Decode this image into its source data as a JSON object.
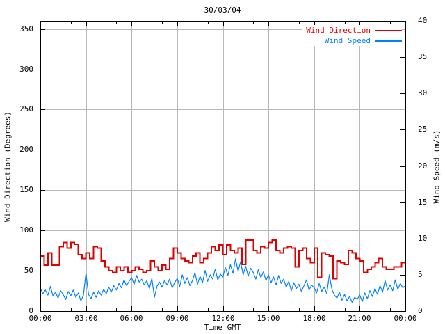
{
  "chart_data": {
    "type": "line",
    "title": "30/03/04",
    "xlabel": "Time GMT",
    "grid_color": "#b9b9b9",
    "background_color": "#ffffff",
    "axis_color": "#000000",
    "x_axis": {
      "min_hours": 0,
      "max_hours": 24,
      "major_tick_hours": [
        0,
        3,
        6,
        9,
        12,
        15,
        18,
        21,
        24
      ],
      "major_tick_labels": [
        "00:00",
        "03:00",
        "06:00",
        "09:00",
        "12:00",
        "15:00",
        "18:00",
        "21:00",
        "00:00"
      ],
      "minor_tick_interval_hours": 1,
      "grid": true
    },
    "y_left": {
      "label": "Wind Direction (Degrees)",
      "min": 0,
      "max": 360,
      "ticks": [
        0,
        50,
        100,
        150,
        200,
        250,
        300,
        350
      ],
      "grid": true
    },
    "y_right": {
      "label": "Wind Speed (m/s)",
      "min": 0,
      "max": 40,
      "ticks": [
        0,
        5,
        10,
        15,
        20,
        25,
        30,
        35,
        40
      ]
    },
    "legend": {
      "position": "top-right-inside",
      "entries": [
        {
          "label": "Wind Direction",
          "color": "#e10000"
        },
        {
          "label": "Wind Speed",
          "color": "#0080ff"
        }
      ]
    },
    "series": [
      {
        "name": "Wind Direction",
        "axis": "left",
        "style": "steps",
        "color": "#e10000",
        "units": "degrees",
        "t_start_hours": 0,
        "t_step_minutes": 15,
        "values": [
          68,
          57,
          72,
          57,
          57,
          80,
          85,
          78,
          85,
          83,
          70,
          65,
          72,
          65,
          80,
          78,
          62,
          55,
          50,
          48,
          55,
          50,
          55,
          48,
          50,
          55,
          52,
          48,
          50,
          62,
          55,
          50,
          57,
          52,
          65,
          78,
          72,
          65,
          62,
          60,
          68,
          72,
          60,
          65,
          72,
          80,
          75,
          82,
          70,
          82,
          75,
          72,
          78,
          58,
          88,
          88,
          75,
          72,
          80,
          78,
          85,
          88,
          75,
          72,
          78,
          80,
          78,
          55,
          75,
          78,
          65,
          60,
          78,
          42,
          72,
          70,
          68,
          40,
          62,
          60,
          58,
          75,
          72,
          65,
          62,
          48,
          52,
          55,
          60,
          65,
          55,
          52,
          52,
          55,
          55,
          60,
          62
        ]
      },
      {
        "name": "Wind Speed",
        "axis": "right",
        "style": "line",
        "color": "#0080ff",
        "units": "m/s",
        "t_start_hours": 0,
        "t_step_minutes": 10,
        "values": [
          3.2,
          2.4,
          2.9,
          2.2,
          3.4,
          2.1,
          2.6,
          1.8,
          2.8,
          2.3,
          1.6,
          2.7,
          2.1,
          2.9,
          1.9,
          2.5,
          1.4,
          2.2,
          5.2,
          2.3,
          1.7,
          2.6,
          1.9,
          2.8,
          2.2,
          3.0,
          2.4,
          3.3,
          2.6,
          3.5,
          2.9,
          3.8,
          3.2,
          4.3,
          3.5,
          4.1,
          4.6,
          3.7,
          4.9,
          4.0,
          4.4,
          3.6,
          4.2,
          3.1,
          4.5,
          1.9,
          3.4,
          4.0,
          3.3,
          4.2,
          3.6,
          4.4,
          3.2,
          3.9,
          4.5,
          3.4,
          5.0,
          3.8,
          4.6,
          3.5,
          4.2,
          5.3,
          3.7,
          4.8,
          3.9,
          5.6,
          4.1,
          5.0,
          4.4,
          5.8,
          4.3,
          5.1,
          4.7,
          6.0,
          4.9,
          6.4,
          5.2,
          7.2,
          5.5,
          6.8,
          5.0,
          6.2,
          4.8,
          5.9,
          5.3,
          4.4,
          5.7,
          4.6,
          5.4,
          4.2,
          5.0,
          3.9,
          4.7,
          3.6,
          4.9,
          3.8,
          4.4,
          3.3,
          4.1,
          2.8,
          3.9,
          3.1,
          3.7,
          2.7,
          3.5,
          4.3,
          2.9,
          3.6,
          3.2,
          2.5,
          3.8,
          2.7,
          3.3,
          2.4,
          5.0,
          3.0,
          2.2,
          1.8,
          2.6,
          1.5,
          2.3,
          1.4,
          2.0,
          1.2,
          1.9,
          1.6,
          2.2,
          1.3,
          2.5,
          1.7,
          2.8,
          2.0,
          3.1,
          2.3,
          3.5,
          2.6,
          4.2,
          2.9,
          3.6,
          2.8,
          4.3,
          3.0,
          3.8,
          3.2,
          3.5
        ]
      }
    ]
  }
}
